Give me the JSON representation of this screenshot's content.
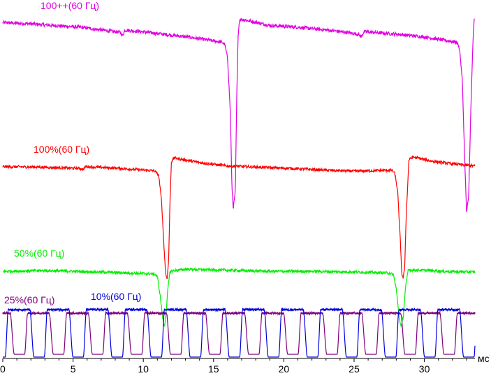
{
  "chart_data": {
    "type": "line",
    "title": "",
    "xlabel": "мс",
    "ylabel": "",
    "xlim": [
      0,
      33.6
    ],
    "ylim": [
      0,
      1
    ],
    "grid": false,
    "x_ticks": [
      "0",
      "5",
      "10",
      "15",
      "20",
      "25",
      "30"
    ],
    "x_tick_values": [
      0,
      5,
      10,
      15,
      20,
      25,
      30
    ],
    "series": [
      {
        "name": "100++(60 Гц)",
        "color": "#e000e0",
        "points": [
          [
            0,
            0.963
          ],
          [
            1.9,
            0.96
          ],
          [
            3.5,
            0.955
          ],
          [
            5.5,
            0.95
          ],
          [
            8.4,
            0.935
          ],
          [
            8.5,
            0.925
          ],
          [
            8.7,
            0.942
          ],
          [
            11.0,
            0.932
          ],
          [
            13.5,
            0.92
          ],
          [
            15.6,
            0.907
          ],
          [
            15.8,
            0.9
          ],
          [
            16.0,
            0.86
          ],
          [
            16.2,
            0.7
          ],
          [
            16.3,
            0.5
          ],
          [
            16.4,
            0.43
          ],
          [
            16.55,
            0.48
          ],
          [
            16.65,
            0.75
          ],
          [
            16.75,
            0.93
          ],
          [
            16.85,
            0.972
          ],
          [
            17.1,
            0.972
          ],
          [
            19.0,
            0.955
          ],
          [
            21.0,
            0.95
          ],
          [
            23.5,
            0.94
          ],
          [
            25.3,
            0.93
          ],
          [
            25.5,
            0.922
          ],
          [
            25.7,
            0.937
          ],
          [
            28.0,
            0.93
          ],
          [
            30.0,
            0.922
          ],
          [
            32.3,
            0.907
          ],
          [
            32.5,
            0.89
          ],
          [
            32.7,
            0.8
          ],
          [
            32.85,
            0.6
          ],
          [
            33.0,
            0.42
          ],
          [
            33.15,
            0.46
          ],
          [
            33.3,
            0.7
          ],
          [
            33.45,
            0.9
          ],
          [
            33.55,
            0.972
          ]
        ]
      },
      {
        "name": "100%(60 Гц)",
        "color": "#ff0000",
        "points": [
          [
            0,
            0.55
          ],
          [
            2.5,
            0.549
          ],
          [
            5.5,
            0.545
          ],
          [
            5.7,
            0.542
          ],
          [
            5.9,
            0.55
          ],
          [
            8.0,
            0.546
          ],
          [
            10.8,
            0.538
          ],
          [
            11.1,
            0.525
          ],
          [
            11.3,
            0.45
          ],
          [
            11.5,
            0.3
          ],
          [
            11.6,
            0.24
          ],
          [
            11.7,
            0.23
          ],
          [
            11.8,
            0.28
          ],
          [
            11.9,
            0.45
          ],
          [
            12.0,
            0.565
          ],
          [
            12.2,
            0.575
          ],
          [
            14.0,
            0.562
          ],
          [
            16.0,
            0.552
          ],
          [
            18.0,
            0.549
          ],
          [
            21.0,
            0.544
          ],
          [
            23.0,
            0.54
          ],
          [
            25.0,
            0.537
          ],
          [
            27.7,
            0.54
          ],
          [
            27.9,
            0.53
          ],
          [
            28.1,
            0.48
          ],
          [
            28.3,
            0.33
          ],
          [
            28.4,
            0.24
          ],
          [
            28.5,
            0.23
          ],
          [
            28.6,
            0.26
          ],
          [
            28.7,
            0.4
          ],
          [
            28.9,
            0.57
          ],
          [
            29.2,
            0.578
          ],
          [
            30.5,
            0.566
          ],
          [
            32.0,
            0.558
          ],
          [
            33.6,
            0.552
          ]
        ]
      },
      {
        "name": "50%(60 Гц)",
        "color": "#00ee00",
        "points": [
          [
            0,
            0.25
          ],
          [
            1.5,
            0.251
          ],
          [
            3.0,
            0.252
          ],
          [
            5.0,
            0.25
          ],
          [
            7.0,
            0.248
          ],
          [
            9.0,
            0.245
          ],
          [
            10.8,
            0.242
          ],
          [
            11.0,
            0.235
          ],
          [
            11.2,
            0.18
          ],
          [
            11.4,
            0.11
          ],
          [
            11.5,
            0.09
          ],
          [
            11.6,
            0.12
          ],
          [
            11.75,
            0.2
          ],
          [
            11.9,
            0.25
          ],
          [
            13.0,
            0.256
          ],
          [
            16.0,
            0.253
          ],
          [
            19.0,
            0.25
          ],
          [
            22.0,
            0.25
          ],
          [
            25.0,
            0.248
          ],
          [
            27.5,
            0.245
          ],
          [
            27.8,
            0.24
          ],
          [
            28.0,
            0.2
          ],
          [
            28.2,
            0.12
          ],
          [
            28.35,
            0.09
          ],
          [
            28.5,
            0.12
          ],
          [
            28.65,
            0.2
          ],
          [
            28.85,
            0.254
          ],
          [
            30.5,
            0.252
          ],
          [
            32.0,
            0.249
          ],
          [
            33.6,
            0.248
          ]
        ]
      },
      {
        "name": "25%(60 Гц)",
        "color": "#800080",
        "period": 2.78,
        "phase": 1.55,
        "high": 0.13,
        "low": 0.012
      },
      {
        "name": "10%(60 Гц)",
        "color": "#0000dd",
        "period": 2.78,
        "phase": 2.95,
        "high": 0.14,
        "low": 0.004
      }
    ]
  }
}
